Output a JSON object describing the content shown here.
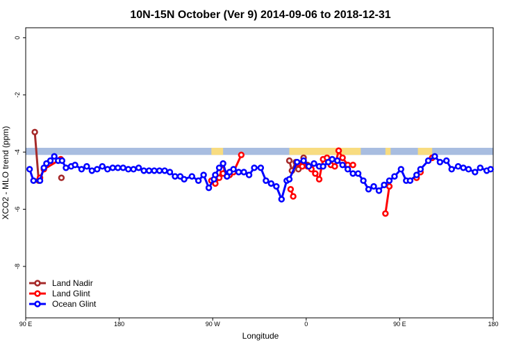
{
  "chart_data": {
    "type": "line",
    "title": "10N-15N October (Ver 9)   2014-09-06 to 2018-12-31",
    "xlabel": "Longitude",
    "ylabel": "XCO2 - MLO trend (ppm)",
    "xlim": [
      0,
      360
    ],
    "ylim": [
      -9.8,
      0.35
    ],
    "x_ticks": [
      {
        "value": 0,
        "label": "90 E"
      },
      {
        "value": 72,
        "label": "180"
      },
      {
        "value": 144,
        "label": "90 W"
      },
      {
        "value": 216,
        "label": "0"
      },
      {
        "value": 288,
        "label": "90 E"
      },
      {
        "value": 360,
        "label": "180"
      }
    ],
    "y_ticks": [
      {
        "value": 0,
        "label": "0"
      },
      {
        "value": -2,
        "label": "-2"
      },
      {
        "value": -4,
        "label": "-4"
      },
      {
        "value": -6,
        "label": "-6"
      },
      {
        "value": -8,
        "label": "-8"
      }
    ],
    "grid": false,
    "legend_position": "bottom-left",
    "land_band": {
      "y_top": -3.85,
      "y_bottom": -4.1,
      "ocean_color": "#a8bde0",
      "land_color": "#f8dc80"
    },
    "land_segments": [
      [
        143,
        152
      ],
      [
        203,
        258
      ],
      [
        277,
        281
      ],
      [
        302,
        313
      ]
    ],
    "series": [
      {
        "name": "Land Nadir",
        "color": "#a52a2a",
        "x": [
          7,
          10,
          27.5,
          203,
          205,
          208,
          210,
          214,
          217
        ],
        "y": [
          -3.3,
          -5,
          -4.9,
          -4.3,
          -4.65,
          -4.35,
          -4.6,
          -4.2,
          -4.45
        ],
        "segments": [
          [
            0,
            1
          ],
          [
            3,
            4
          ],
          [
            4,
            5
          ],
          [
            5,
            6
          ],
          [
            6,
            7
          ],
          [
            7,
            8
          ]
        ]
      },
      {
        "name": "Land Glint",
        "color": "#ff0000",
        "x": [
          11,
          14,
          27,
          143,
          146,
          149,
          151,
          152,
          155,
          157,
          160,
          166,
          204,
          206,
          210,
          213,
          217,
          220,
          223,
          226,
          229,
          232,
          235,
          238,
          241,
          244,
          248,
          252,
          277,
          280,
          301,
          304,
          313
        ],
        "y": [
          -4.9,
          -4.6,
          -4.25,
          -5,
          -5.1,
          -4.9,
          -4.6,
          -4.75,
          -4.85,
          -4.8,
          -4.7,
          -4.1,
          -5.3,
          -5.55,
          -4.4,
          -4.5,
          -4.5,
          -4.6,
          -4.75,
          -4.95,
          -4.25,
          -4.2,
          -4.45,
          -4.5,
          -3.95,
          -4.2,
          -4.45,
          -4.45,
          -6.15,
          -5.2,
          -4.9,
          -4.7,
          -4.2
        ],
        "segments": [
          [
            0,
            1
          ],
          [
            1,
            2
          ],
          [
            3,
            4
          ],
          [
            4,
            5
          ],
          [
            5,
            6
          ],
          [
            7,
            8
          ],
          [
            8,
            9
          ],
          [
            9,
            10
          ],
          [
            10,
            11
          ],
          [
            12,
            13
          ],
          [
            14,
            15
          ],
          [
            15,
            16
          ],
          [
            16,
            17
          ],
          [
            17,
            18
          ],
          [
            18,
            19
          ],
          [
            19,
            20
          ],
          [
            20,
            21
          ],
          [
            21,
            22
          ],
          [
            22,
            23
          ],
          [
            23,
            24
          ],
          [
            24,
            25
          ],
          [
            25,
            26
          ],
          [
            26,
            27
          ],
          [
            28,
            29
          ],
          [
            30,
            31
          ]
        ]
      },
      {
        "name": "Ocean Glint",
        "color": "#0000ff",
        "x": [
          3,
          6,
          11,
          14,
          16,
          19,
          22,
          25,
          28,
          31,
          35,
          38,
          43,
          47,
          51,
          55,
          59,
          63,
          67,
          71,
          75,
          79,
          83,
          87,
          91,
          95,
          99,
          103,
          107,
          111,
          115,
          119,
          122,
          128,
          133,
          137,
          141,
          145,
          146,
          149,
          152,
          155,
          157,
          160,
          164,
          168,
          172,
          176,
          181,
          185,
          189,
          193,
          197,
          201,
          203,
          209,
          214,
          218,
          222,
          226,
          229,
          233,
          236,
          240,
          244,
          248,
          252,
          256,
          260,
          264,
          268,
          272,
          276,
          280,
          284,
          289,
          293,
          296,
          301,
          304,
          310,
          315,
          319,
          324,
          328,
          333,
          337,
          341,
          346,
          350,
          355,
          358
        ],
        "y": [
          -4.6,
          -5,
          -5,
          -4.55,
          -4.4,
          -4.3,
          -4.15,
          -4.3,
          -4.3,
          -4.55,
          -4.5,
          -4.45,
          -4.6,
          -4.5,
          -4.65,
          -4.6,
          -4.5,
          -4.6,
          -4.55,
          -4.55,
          -4.55,
          -4.6,
          -4.6,
          -4.55,
          -4.65,
          -4.65,
          -4.65,
          -4.65,
          -4.65,
          -4.7,
          -4.85,
          -4.85,
          -4.95,
          -4.85,
          -5,
          -4.8,
          -5.25,
          -4.95,
          -4.8,
          -4.55,
          -4.4,
          -4.85,
          -4.7,
          -4.6,
          -4.7,
          -4.7,
          -4.8,
          -4.55,
          -4.55,
          -5,
          -5.1,
          -5.2,
          -5.65,
          -5,
          -4.95,
          -4.35,
          -4.3,
          -4.5,
          -4.4,
          -4.5,
          -4.5,
          -4.35,
          -4.25,
          -4.3,
          -4.45,
          -4.6,
          -4.75,
          -4.75,
          -5,
          -5.3,
          -5.2,
          -5.35,
          -5.15,
          -5,
          -4.85,
          -4.6,
          -5,
          -5,
          -4.8,
          -4.6,
          -4.3,
          -4.15,
          -4.35,
          -4.3,
          -4.6,
          -4.5,
          -4.55,
          -4.6,
          -4.7,
          -4.55,
          -4.65,
          -4.6
        ]
      }
    ]
  }
}
